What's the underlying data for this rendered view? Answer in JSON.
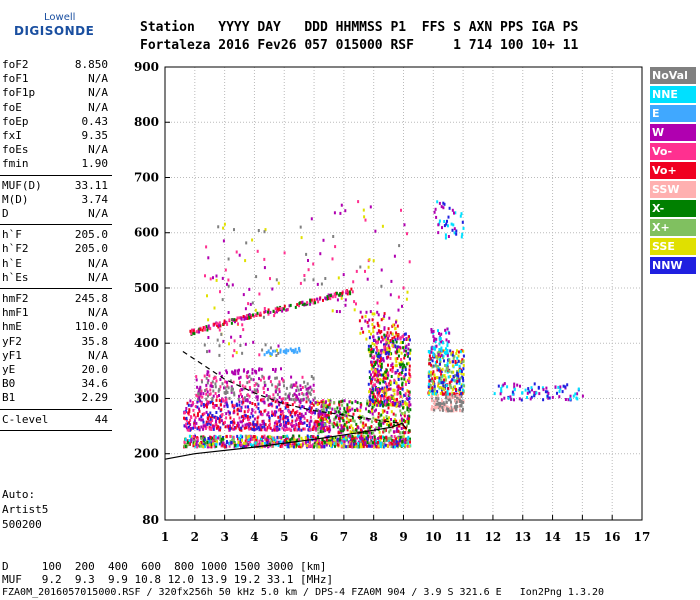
{
  "logo": {
    "top": "Lowell",
    "bottom": "DIGISONDE"
  },
  "header": {
    "line1": "Station   YYYY DAY   DDD HHMMSS P1  FFS S AXN PPS IGA PS",
    "line2": "Fortaleza 2016 Fev26 057 015000 RSF     1 714 100 10+ 11"
  },
  "params": [
    [
      {
        "n": "foF2",
        "v": "8.850"
      },
      {
        "n": "foF1",
        "v": "N/A"
      },
      {
        "n": "foF1p",
        "v": "N/A"
      },
      {
        "n": "foE",
        "v": "N/A"
      },
      {
        "n": "foEp",
        "v": "0.43"
      },
      {
        "n": "fxI",
        "v": "9.35"
      },
      {
        "n": "foEs",
        "v": "N/A"
      },
      {
        "n": "fmin",
        "v": "1.90"
      }
    ],
    [
      {
        "n": "MUF(D)",
        "v": "33.11"
      },
      {
        "n": "M(D)",
        "v": "3.74"
      },
      {
        "n": "D",
        "v": "N/A"
      }
    ],
    [
      {
        "n": "h`F",
        "v": "205.0"
      },
      {
        "n": "h`F2",
        "v": "205.0"
      },
      {
        "n": "h`E",
        "v": "N/A"
      },
      {
        "n": "h`Es",
        "v": "N/A"
      }
    ],
    [
      {
        "n": "hmF2",
        "v": "245.8"
      },
      {
        "n": "hmF1",
        "v": "N/A"
      },
      {
        "n": "hmE",
        "v": "110.0"
      },
      {
        "n": "yF2",
        "v": "35.8"
      },
      {
        "n": "yF1",
        "v": "N/A"
      },
      {
        "n": "yE",
        "v": "20.0"
      },
      {
        "n": "B0",
        "v": "34.6"
      },
      {
        "n": "B1",
        "v": "2.29"
      }
    ],
    [
      {
        "n": "C-level",
        "v": "44"
      }
    ]
  ],
  "auto": [
    "Auto:",
    "Artist5",
    "500200"
  ],
  "footer": {
    "d_line": "D     100  200  400  600  800 1000 1500 3000 [km]",
    "muf_line": "MUF   9.2  9.3  9.9 10.8 12.0 13.9 19.2 33.1 [MHz]",
    "file_line": "FZA0M_2016057015000.RSF / 320fx256h 50 kHz 5.0 km / DPS-4 FZA0M 904 / 3.9 S 321.6 E   Ion2Png 1.3.20"
  },
  "legend": [
    {
      "label": "NoVal",
      "color": "#808080"
    },
    {
      "label": "NNE",
      "color": "#00e0ff"
    },
    {
      "label": "E",
      "color": "#40a8ff"
    },
    {
      "label": "W",
      "color": "#b000b0"
    },
    {
      "label": "Vo-",
      "color": "#ff3090"
    },
    {
      "label": "Vo+",
      "color": "#f00020"
    },
    {
      "label": "SSW",
      "color": "#ffb0b0"
    },
    {
      "label": "X-",
      "color": "#008000"
    },
    {
      "label": "X+",
      "color": "#80c060"
    },
    {
      "label": "SSE",
      "color": "#e0e000"
    },
    {
      "label": "NNW",
      "color": "#2020e0"
    }
  ],
  "chart_data": {
    "type": "scatter",
    "xlabel": "",
    "ylabel": "",
    "xlim": [
      1,
      17
    ],
    "ylim": [
      80,
      900
    ],
    "x_ticks": [
      1,
      2,
      3,
      4,
      5,
      6,
      7,
      8,
      9,
      10,
      11,
      12,
      13,
      14,
      15,
      16,
      17
    ],
    "y_ticks": [
      80,
      200,
      300,
      400,
      500,
      600,
      700,
      800,
      900
    ],
    "grid": "dotted",
    "legend_position": "right",
    "clusters": [
      {
        "xr": [
          1.6,
          9.2
        ],
        "yr": [
          215,
          235
        ],
        "n": 900,
        "colors": [
          "#f00020",
          "#ff3090",
          "#008000",
          "#80c060",
          "#e0e000",
          "#2020e0",
          "#00e0ff",
          "#b000b0"
        ]
      },
      {
        "xr": [
          1.6,
          6.5
        ],
        "yr": [
          245,
          300
        ],
        "n": 600,
        "colors": [
          "#b000b0",
          "#ff3090",
          "#2020e0",
          "#f00020"
        ]
      },
      {
        "xr": [
          2.0,
          6.0
        ],
        "yr": [
          300,
          345
        ],
        "n": 250,
        "colors": [
          "#b000b0",
          "#ff3090",
          "#808080"
        ]
      },
      {
        "xr": [
          6.0,
          9.2
        ],
        "yr": [
          240,
          300
        ],
        "n": 400,
        "colors": [
          "#b000b0",
          "#f00020",
          "#e0e000",
          "#80c060",
          "#008000"
        ]
      },
      {
        "xr": [
          7.8,
          9.2
        ],
        "yr": [
          290,
          420
        ],
        "n": 500,
        "colors": [
          "#f00020",
          "#ff3090",
          "#e0e000",
          "#2020e0",
          "#008000",
          "#b000b0"
        ]
      },
      {
        "xr": [
          7.5,
          8.8
        ],
        "yr": [
          410,
          460
        ],
        "n": 60,
        "colors": [
          "#b000b0",
          "#f00020",
          "#e0e000"
        ]
      },
      {
        "xr": [
          9.8,
          11.0
        ],
        "yr": [
          310,
          390
        ],
        "n": 300,
        "colors": [
          "#2020e0",
          "#00e0ff",
          "#e0e000",
          "#f00020",
          "#80c060"
        ]
      },
      {
        "xr": [
          9.9,
          11.0
        ],
        "yr": [
          280,
          310
        ],
        "n": 120,
        "colors": [
          "#ffb0b0",
          "#808080"
        ]
      },
      {
        "xr": [
          9.9,
          10.5
        ],
        "yr": [
          380,
          430
        ],
        "n": 60,
        "colors": [
          "#00e0ff",
          "#b000b0"
        ]
      },
      {
        "xr": [
          12.0,
          15.0
        ],
        "yr": [
          300,
          330
        ],
        "n": 90,
        "colors": [
          "#00e0ff",
          "#2020e0",
          "#b000b0"
        ]
      },
      {
        "xr": [
          10.0,
          11.0
        ],
        "yr": [
          590,
          660
        ],
        "n": 40,
        "colors": [
          "#00e0ff",
          "#b000b0",
          "#2020e0"
        ]
      },
      {
        "xr": [
          2.3,
          5.0
        ],
        "yr": [
          380,
          620
        ],
        "n": 90,
        "colors": [
          "#ff3090",
          "#808080",
          "#e0e000",
          "#b000b0"
        ]
      },
      {
        "xr": [
          5.5,
          9.2
        ],
        "yr": [
          460,
          660
        ],
        "n": 70,
        "colors": [
          "#808080",
          "#ff3090",
          "#e0e000",
          "#b000b0"
        ]
      }
    ],
    "traces": [
      {
        "x": [
          1.7,
          2.5,
          3.5,
          4.5,
          5.5,
          6.5,
          7.3
        ],
        "y": [
          420,
          432,
          447,
          460,
          472,
          487,
          498
        ],
        "colors": [
          "#f00020",
          "#b000b0",
          "#ff3090",
          "#008000"
        ]
      },
      {
        "x": [
          4.3,
          5.5
        ],
        "y": [
          385,
          390
        ],
        "colors": [
          "#40a8ff"
        ]
      },
      {
        "x": [
          2.0,
          5.0
        ],
        "y": [
          348,
          355
        ],
        "colors": [
          "#b000b0"
        ]
      }
    ],
    "profile_dashed": {
      "x": [
        1.6,
        2.3,
        3.0,
        4.0,
        5.0,
        6.0,
        7.0,
        8.0,
        8.9
      ],
      "y": [
        385,
        360,
        335,
        310,
        290,
        278,
        270,
        262,
        255
      ]
    },
    "profile_solid": {
      "x": [
        1.0,
        2.0,
        4.0,
        6.0,
        7.5,
        8.6,
        8.95,
        9.1
      ],
      "y": [
        190,
        200,
        212,
        226,
        238,
        248,
        255,
        245
      ]
    }
  }
}
